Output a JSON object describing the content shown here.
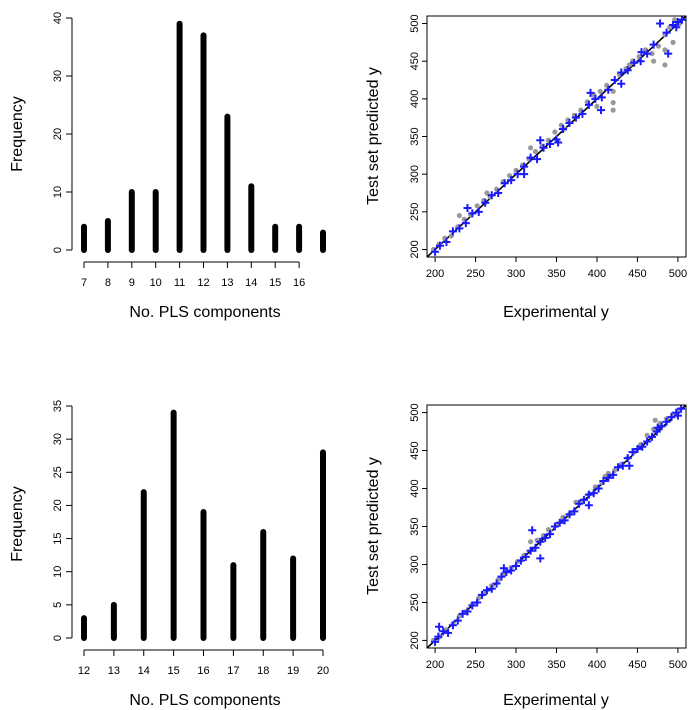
{
  "chart_data": [
    {
      "type": "bar",
      "style": "histogram-spikes",
      "x": [
        7,
        8,
        9,
        10,
        11,
        12,
        13,
        14,
        15,
        16,
        17
      ],
      "values": [
        4,
        5,
        10,
        10,
        39,
        37,
        23,
        11,
        4,
        4,
        3
      ],
      "xticks": [
        "7",
        "8",
        "9",
        "10",
        "11",
        "12",
        "13",
        "14",
        "15",
        "16"
      ],
      "yticks": [
        "0",
        "10",
        "20",
        "30",
        "40"
      ],
      "xlabel": "No. PLS components",
      "ylabel": "Frequency",
      "xlim": [
        7,
        17
      ],
      "ylim": [
        0,
        40
      ],
      "bar_color": "#000000"
    },
    {
      "type": "scatter",
      "xticks": [
        "200",
        "250",
        "300",
        "350",
        "400",
        "450",
        "500"
      ],
      "yticks": [
        "200",
        "250",
        "300",
        "350",
        "400",
        "450",
        "500"
      ],
      "xlabel": "Experimental y",
      "ylabel": "Test set predicted y",
      "xlim": [
        190,
        510
      ],
      "ylim": [
        190,
        510
      ],
      "reference_line": [
        [
          185,
          185
        ],
        [
          515,
          515
        ]
      ],
      "series": [
        {
          "marker": "dot",
          "color": "#999999",
          "points": [
            [
              198,
              200
            ],
            [
              205,
              207
            ],
            [
              212,
              215
            ],
            [
              220,
              218
            ],
            [
              228,
              230
            ],
            [
              236,
              240
            ],
            [
              244,
              246
            ],
            [
              252,
              258
            ],
            [
              260,
              265
            ],
            [
              268,
              270
            ],
            [
              276,
              280
            ],
            [
              284,
              290
            ],
            [
              292,
              298
            ],
            [
              300,
              305
            ],
            [
              308,
              312
            ],
            [
              316,
              320
            ],
            [
              324,
              330
            ],
            [
              332,
              337
            ],
            [
              340,
              345
            ],
            [
              348,
              356
            ],
            [
              356,
              365
            ],
            [
              364,
              372
            ],
            [
              372,
              378
            ],
            [
              380,
              385
            ],
            [
              388,
              396
            ],
            [
              396,
              405
            ],
            [
              404,
              410
            ],
            [
              412,
              418
            ],
            [
              420,
              410
            ],
            [
              420,
              395
            ],
            [
              420,
              385
            ],
            [
              428,
              432
            ],
            [
              436,
              440
            ],
            [
              444,
              450
            ],
            [
              452,
              456
            ],
            [
              460,
              465
            ],
            [
              468,
              460
            ],
            [
              476,
              470
            ],
            [
              484,
              485
            ],
            [
              484,
              465
            ],
            [
              484,
              445
            ],
            [
              490,
              495
            ],
            [
              496,
              505
            ],
            [
              502,
              500
            ],
            [
              230,
              245
            ],
            [
              264,
              275
            ],
            [
              318,
              335
            ],
            [
              360,
              360
            ],
            [
              400,
              390
            ],
            [
              440,
              445
            ],
            [
              470,
              450
            ],
            [
              494,
              475
            ]
          ]
        },
        {
          "marker": "plus",
          "color": "#1a1aff",
          "points": [
            [
              200,
              197
            ],
            [
              206,
              205
            ],
            [
              214,
              210
            ],
            [
              222,
              224
            ],
            [
              230,
              228
            ],
            [
              238,
              235
            ],
            [
              246,
              248
            ],
            [
              254,
              250
            ],
            [
              262,
              262
            ],
            [
              270,
              272
            ],
            [
              278,
              275
            ],
            [
              286,
              288
            ],
            [
              294,
              292
            ],
            [
              302,
              300
            ],
            [
              310,
              310
            ],
            [
              318,
              322
            ],
            [
              326,
              320
            ],
            [
              334,
              335
            ],
            [
              342,
              340
            ],
            [
              350,
              346
            ],
            [
              358,
              360
            ],
            [
              366,
              368
            ],
            [
              374,
              375
            ],
            [
              382,
              380
            ],
            [
              390,
              392
            ],
            [
              398,
              400
            ],
            [
              406,
              402
            ],
            [
              414,
              412
            ],
            [
              422,
              425
            ],
            [
              430,
              435
            ],
            [
              438,
              438
            ],
            [
              446,
              448
            ],
            [
              454,
              450
            ],
            [
              462,
              460
            ],
            [
              470,
              472
            ],
            [
              478,
              500
            ],
            [
              486,
              488
            ],
            [
              494,
              498
            ],
            [
              500,
              502
            ],
            [
              505,
              505
            ],
            [
              240,
              255
            ],
            [
              310,
              300
            ],
            [
              330,
              345
            ],
            [
              352,
              342
            ],
            [
              392,
              408
            ],
            [
              405,
              385
            ],
            [
              430,
              420
            ],
            [
              455,
              462
            ],
            [
              488,
              460
            ],
            [
              498,
              495
            ]
          ]
        }
      ]
    },
    {
      "type": "bar",
      "style": "histogram-spikes",
      "x": [
        12,
        13,
        14,
        15,
        16,
        17,
        18,
        19,
        20
      ],
      "values": [
        3,
        5,
        22,
        34,
        19,
        11,
        16,
        12,
        28
      ],
      "xticks": [
        "12",
        "13",
        "14",
        "15",
        "16",
        "17",
        "18",
        "19",
        "20"
      ],
      "yticks": [
        "0",
        "5",
        "10",
        "15",
        "20",
        "25",
        "30",
        "35"
      ],
      "xlabel": "No. PLS components",
      "ylabel": "Frequency",
      "xlim": [
        12,
        20
      ],
      "ylim": [
        0,
        35
      ],
      "bar_color": "#000000"
    },
    {
      "type": "scatter",
      "xticks": [
        "200",
        "250",
        "300",
        "350",
        "400",
        "450",
        "500"
      ],
      "yticks": [
        "200",
        "250",
        "300",
        "350",
        "400",
        "450",
        "500"
      ],
      "xlabel": "Experimental y",
      "ylabel": "Test set predicted y",
      "xlim": [
        190,
        510
      ],
      "ylim": [
        190,
        510
      ],
      "reference_line": [
        [
          185,
          185
        ],
        [
          515,
          515
        ]
      ],
      "series": [
        {
          "marker": "dot",
          "color": "#999999",
          "points": [
            [
              198,
              200
            ],
            [
              206,
              205
            ],
            [
              214,
              214
            ],
            [
              222,
              222
            ],
            [
              230,
              232
            ],
            [
              238,
              238
            ],
            [
              246,
              248
            ],
            [
              254,
              256
            ],
            [
              262,
              262
            ],
            [
              270,
              272
            ],
            [
              278,
              280
            ],
            [
              286,
              288
            ],
            [
              294,
              296
            ],
            [
              302,
              304
            ],
            [
              310,
              312
            ],
            [
              318,
              330
            ],
            [
              326,
              332
            ],
            [
              334,
              338
            ],
            [
              342,
              344
            ],
            [
              350,
              352
            ],
            [
              358,
              362
            ],
            [
              366,
              366
            ],
            [
              374,
              382
            ],
            [
              382,
              384
            ],
            [
              390,
              392
            ],
            [
              398,
              402
            ],
            [
              406,
              408
            ],
            [
              414,
              420
            ],
            [
              422,
              424
            ],
            [
              430,
              432
            ],
            [
              438,
              440
            ],
            [
              446,
              448
            ],
            [
              454,
              458
            ],
            [
              462,
              470
            ],
            [
              470,
              478
            ],
            [
              478,
              486
            ],
            [
              486,
              492
            ],
            [
              494,
              498
            ],
            [
              502,
              504
            ],
            [
              472,
              490
            ],
            [
              410,
              416
            ],
            [
              340,
              346
            ]
          ]
        },
        {
          "marker": "plus",
          "color": "#1a1aff",
          "points": [
            [
              200,
              198
            ],
            [
              204,
              205
            ],
            [
              210,
              212
            ],
            [
              216,
              210
            ],
            [
              222,
              220
            ],
            [
              228,
              226
            ],
            [
              234,
              235
            ],
            [
              240,
              238
            ],
            [
              246,
              246
            ],
            [
              252,
              250
            ],
            [
              258,
              260
            ],
            [
              264,
              266
            ],
            [
              270,
              268
            ],
            [
              276,
              275
            ],
            [
              282,
              284
            ],
            [
              288,
              290
            ],
            [
              294,
              292
            ],
            [
              300,
              298
            ],
            [
              306,
              305
            ],
            [
              312,
              310
            ],
            [
              318,
              318
            ],
            [
              324,
              322
            ],
            [
              330,
              330
            ],
            [
              336,
              335
            ],
            [
              342,
              340
            ],
            [
              348,
              350
            ],
            [
              354,
              355
            ],
            [
              360,
              358
            ],
            [
              366,
              366
            ],
            [
              372,
              370
            ],
            [
              378,
              380
            ],
            [
              384,
              385
            ],
            [
              390,
              392
            ],
            [
              396,
              394
            ],
            [
              402,
              400
            ],
            [
              408,
              410
            ],
            [
              414,
              414
            ],
            [
              420,
              418
            ],
            [
              426,
              428
            ],
            [
              432,
              430
            ],
            [
              438,
              440
            ],
            [
              444,
              448
            ],
            [
              450,
              452
            ],
            [
              456,
              455
            ],
            [
              462,
              462
            ],
            [
              468,
              468
            ],
            [
              474,
              475
            ],
            [
              480,
              482
            ],
            [
              486,
              488
            ],
            [
              492,
              494
            ],
            [
              498,
              500
            ],
            [
              504,
              505
            ],
            [
              205,
              218
            ],
            [
              285,
              295
            ],
            [
              320,
              345
            ],
            [
              330,
              308
            ],
            [
              390,
              378
            ],
            [
              440,
              430
            ],
            [
              475,
              480
            ],
            [
              500,
              496
            ]
          ]
        }
      ]
    }
  ]
}
